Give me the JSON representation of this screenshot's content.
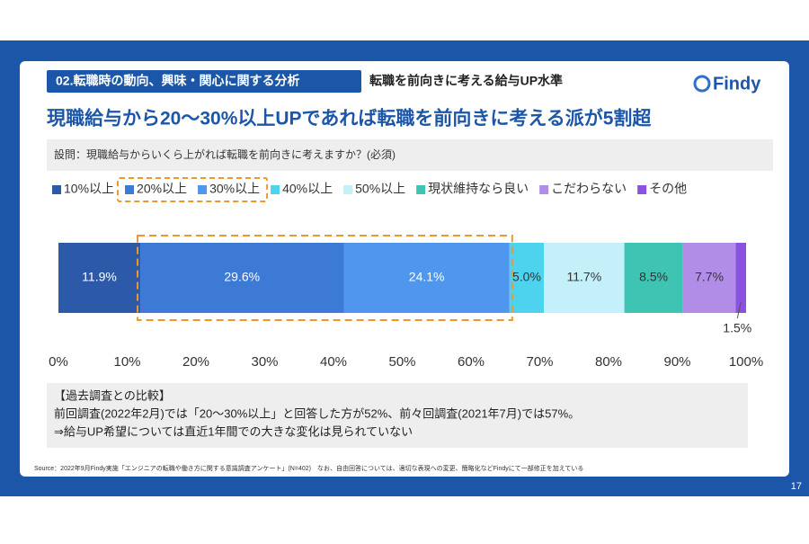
{
  "header": {
    "section_tag": "02.転職時の動向、興味・関心に関する分析",
    "topic": "転職を前向きに考える給与UP水準",
    "logo": "Findy"
  },
  "chart_data": {
    "type": "stacked-bar-horizontal",
    "title": "現職給与から20〜30%以上UPであれば転職を前向きに考える派が5割超",
    "subtitle": "設問：現職給与からいくら上がれば転職を前向きに考えますか？(必須)",
    "categories": [
      null
    ],
    "series": [
      {
        "name": "10%以上",
        "color": "#2c5aa8",
        "values": [
          11.9
        ],
        "value_labels": [
          "11.9%"
        ]
      },
      {
        "name": "20%以上",
        "color": "#3c7ad6",
        "values": [
          29.6
        ],
        "value_labels": [
          "29.6%"
        ],
        "highlight": true
      },
      {
        "name": "30%以上",
        "color": "#4f97ee",
        "values": [
          24.1
        ],
        "value_labels": [
          "24.1%"
        ],
        "highlight": true
      },
      {
        "name": "40%以上",
        "color": "#4dd3ee",
        "values": [
          5.0
        ],
        "value_labels": [
          "5.0%"
        ]
      },
      {
        "name": "50%以上",
        "color": "#c4f1f9",
        "values": [
          11.7
        ],
        "value_labels": [
          "11.7%"
        ]
      },
      {
        "name": "現状維持なら良い",
        "color": "#3fc3b3",
        "values": [
          8.5
        ],
        "value_labels": [
          "8.5%"
        ]
      },
      {
        "name": "こだわらない",
        "color": "#b28de8",
        "values": [
          7.7
        ],
        "value_labels": [
          "7.7%"
        ]
      },
      {
        "name": "その他",
        "color": "#8a52e0",
        "values": [
          1.5
        ],
        "value_labels": [
          "1.5%"
        ]
      }
    ],
    "xlim": [
      0,
      100
    ],
    "xticks": [
      {
        "value": 0,
        "label": "0%"
      },
      {
        "value": 10,
        "label": "10%"
      },
      {
        "value": 20,
        "label": "20%"
      },
      {
        "value": 30,
        "label": "30%"
      },
      {
        "value": 40,
        "label": "40%"
      },
      {
        "value": 50,
        "label": "50%"
      },
      {
        "value": 60,
        "label": "60%"
      },
      {
        "value": 70,
        "label": "70%"
      },
      {
        "value": 80,
        "label": "80%"
      },
      {
        "value": 90,
        "label": "90%"
      },
      {
        "value": 100,
        "label": "100%"
      }
    ],
    "legend": "top"
  },
  "note": {
    "title": "【過去調査との比較】",
    "lines": [
      "前回調査(2022年2月)では「20〜30%以上」と回答した方が52%、前々回調査(2021年7月)では57%。",
      "⇒給与UP希望については直近1年間での大きな変化は見られていない"
    ]
  },
  "source": "Source：2022年9月Findy実施「エンジニアの転職や働き方に関する意識調査アンケート」(N=402)　なお、自由回答については、適切な表現への変更、簡略化などFindyにて一部修正を加えている",
  "page_number": "17"
}
